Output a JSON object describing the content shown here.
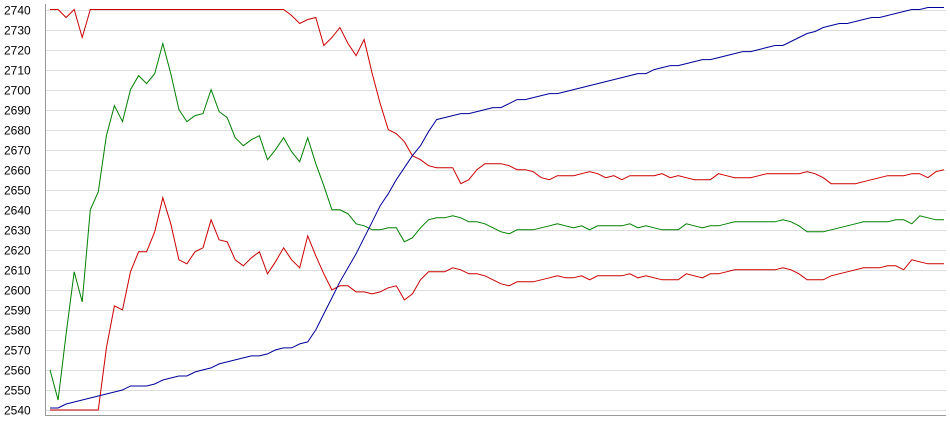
{
  "chart_data": {
    "type": "line",
    "ylim": [
      2540,
      2740
    ],
    "yticks": [
      2540,
      2550,
      2560,
      2570,
      2580,
      2590,
      2600,
      2610,
      2620,
      2630,
      2640,
      2650,
      2660,
      2670,
      2680,
      2690,
      2700,
      2710,
      2720,
      2730,
      2740
    ],
    "grid": true,
    "legend": "none",
    "x": [
      0,
      1,
      2,
      3,
      4,
      5,
      6,
      7,
      8,
      9,
      10,
      11,
      12,
      13,
      14,
      15,
      16,
      17,
      18,
      19,
      20,
      21,
      22,
      23,
      24,
      25,
      26,
      27,
      28,
      29,
      30,
      31,
      32,
      33,
      34,
      35,
      36,
      37,
      38,
      39,
      40,
      41,
      42,
      43,
      44,
      45,
      46,
      47,
      48,
      49,
      50,
      51,
      52,
      53,
      54,
      55,
      56,
      57,
      58,
      59,
      60,
      61,
      62,
      63,
      64,
      65,
      66,
      67,
      68,
      69,
      70,
      71,
      72,
      73,
      74,
      75,
      76,
      77,
      78,
      79,
      80,
      81,
      82,
      83,
      84,
      85,
      86,
      87,
      88,
      89,
      90,
      91,
      92,
      93,
      94,
      95,
      96,
      97,
      98,
      99,
      100,
      101,
      102,
      103,
      104,
      105,
      106,
      107,
      108,
      109,
      110,
      111
    ],
    "series": [
      {
        "color": "#cc0000",
        "values": [
          2740,
          2740,
          2736,
          2740,
          2726,
          2740,
          2740,
          2740,
          2740,
          2740,
          2740,
          2740,
          2740,
          2740,
          2740,
          2740,
          2740,
          2740,
          2740,
          2740,
          2740,
          2740,
          2740,
          2740,
          2740,
          2740,
          2740,
          2740,
          2740,
          2740,
          2737,
          2733,
          2735,
          2736,
          2722,
          2726,
          2731,
          2723,
          2717,
          2725,
          2708,
          2693,
          2680,
          2678,
          2674,
          2667,
          2665,
          2662,
          2661,
          2661,
          2661,
          2653,
          2655,
          2660,
          2663,
          2663,
          2663,
          2662,
          2660,
          2660,
          2659,
          2656,
          2655,
          2657,
          2657,
          2657,
          2658,
          2659,
          2658,
          2656,
          2657,
          2655,
          2657,
          2657,
          2657,
          2657,
          2658,
          2656,
          2657,
          2656,
          2655,
          2655,
          2655,
          2658,
          2657,
          2656,
          2656,
          2656,
          2657,
          2658,
          2658,
          2658,
          2658,
          2658,
          2659,
          2658,
          2656,
          2653,
          2653,
          2653,
          2653,
          2654,
          2655,
          2656,
          2657,
          2657,
          2657,
          2658,
          2658,
          2656,
          2659,
          2660
        ]
      },
      {
        "color": "#008000",
        "values": [
          2560,
          2545,
          2578,
          2609,
          2594,
          2640,
          2649,
          2677,
          2692,
          2684,
          2700,
          2707,
          2703,
          2708,
          2723,
          2708,
          2690,
          2684,
          2687,
          2688,
          2700,
          2689,
          2686,
          2676,
          2672,
          2675,
          2677,
          2665,
          2670,
          2676,
          2669,
          2664,
          2676,
          2663,
          2652,
          2640,
          2640,
          2638,
          2633,
          2632,
          2630,
          2630,
          2631,
          2631,
          2624,
          2626,
          2631,
          2635,
          2636,
          2636,
          2637,
          2636,
          2634,
          2634,
          2633,
          2631,
          2629,
          2628,
          2630,
          2630,
          2630,
          2631,
          2632,
          2633,
          2632,
          2631,
          2632,
          2630,
          2632,
          2632,
          2632,
          2632,
          2633,
          2631,
          2632,
          2631,
          2630,
          2630,
          2630,
          2633,
          2632,
          2631,
          2632,
          2632,
          2633,
          2634,
          2634,
          2634,
          2634,
          2634,
          2634,
          2635,
          2634,
          2632,
          2629,
          2629,
          2629,
          2630,
          2631,
          2632,
          2633,
          2634,
          2634,
          2634,
          2634,
          2635,
          2635,
          2633,
          2637,
          2636,
          2635,
          2635
        ]
      },
      {
        "color": "#cc0000",
        "values": [
          2540,
          2540,
          2540,
          2540,
          2540,
          2540,
          2540,
          2571,
          2592,
          2590,
          2609,
          2619,
          2619,
          2629,
          2646,
          2633,
          2615,
          2613,
          2619,
          2621,
          2635,
          2625,
          2624,
          2615,
          2612,
          2616,
          2619,
          2608,
          2614,
          2621,
          2615,
          2611,
          2627,
          2617,
          2608,
          2600,
          2602,
          2602,
          2599,
          2599,
          2598,
          2599,
          2601,
          2602,
          2595,
          2598,
          2605,
          2609,
          2609,
          2609,
          2611,
          2610,
          2608,
          2608,
          2607,
          2605,
          2603,
          2602,
          2604,
          2604,
          2604,
          2605,
          2606,
          2607,
          2606,
          2606,
          2607,
          2605,
          2607,
          2607,
          2607,
          2607,
          2608,
          2606,
          2607,
          2606,
          2605,
          2605,
          2605,
          2608,
          2607,
          2606,
          2608,
          2608,
          2609,
          2610,
          2610,
          2610,
          2610,
          2610,
          2610,
          2611,
          2610,
          2608,
          2605,
          2605,
          2605,
          2607,
          2608,
          2609,
          2610,
          2611,
          2611,
          2611,
          2612,
          2612,
          2610,
          2615,
          2614,
          2613,
          2613,
          2613
        ]
      },
      {
        "color": "#000099",
        "values": [
          2541,
          2541,
          2543,
          2544,
          2545,
          2546,
          2547,
          2548,
          2549,
          2550,
          2552,
          2552,
          2552,
          2553,
          2555,
          2556,
          2557,
          2557,
          2559,
          2560,
          2561,
          2563,
          2564,
          2565,
          2566,
          2567,
          2567,
          2568,
          2570,
          2571,
          2571,
          2573,
          2574,
          2580,
          2588,
          2596,
          2604,
          2611,
          2618,
          2626,
          2634,
          2642,
          2648,
          2655,
          2661,
          2667,
          2672,
          2679,
          2685,
          2686,
          2687,
          2688,
          2688,
          2689,
          2690,
          2691,
          2691,
          2693,
          2695,
          2695,
          2696,
          2697,
          2698,
          2698,
          2699,
          2700,
          2701,
          2702,
          2703,
          2704,
          2705,
          2706,
          2707,
          2708,
          2708,
          2710,
          2711,
          2712,
          2712,
          2713,
          2714,
          2715,
          2715,
          2716,
          2717,
          2718,
          2719,
          2719,
          2720,
          2721,
          2722,
          2722,
          2724,
          2726,
          2728,
          2729,
          2731,
          2732,
          2733,
          2733,
          2734,
          2735,
          2736,
          2736,
          2737,
          2738,
          2739,
          2740,
          2740,
          2741,
          2741,
          2741
        ]
      }
    ]
  }
}
